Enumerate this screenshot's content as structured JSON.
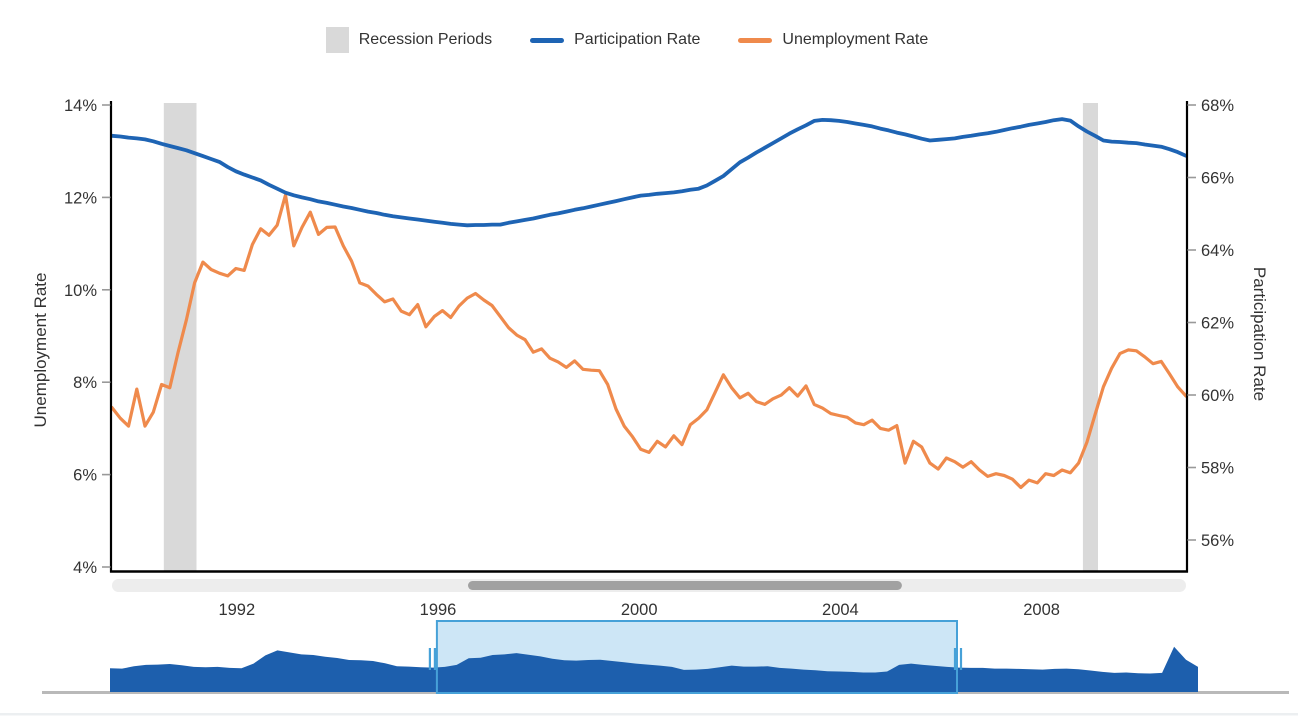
{
  "legend": {
    "items": [
      {
        "label": "Recession Periods",
        "type": "band",
        "color": "#d9d9d9"
      },
      {
        "label": "Participation Rate",
        "type": "line",
        "color": "#1e64b4"
      },
      {
        "label": "Unemployment Rate",
        "type": "line",
        "color": "#ef8a4c"
      }
    ]
  },
  "axes": {
    "left": {
      "title": "Unemployment Rate",
      "ticks": [
        "14%",
        "12%",
        "10%",
        "8%",
        "6%",
        "4%"
      ]
    },
    "right": {
      "title": "Participation Rate",
      "ticks": [
        "68%",
        "66%",
        "64%",
        "62%",
        "60%",
        "58%",
        "56%"
      ]
    },
    "x": {
      "tick_labels": [
        "1992",
        "1996",
        "2000",
        "2004",
        "2008"
      ]
    }
  },
  "chart_data": {
    "type": "line",
    "title": "",
    "x_axis": {
      "min": 1989.52,
      "max": 2010.87,
      "tick_values": [
        1992,
        1996,
        2000,
        2004,
        2008
      ],
      "tick_labels": [
        "1992",
        "1996",
        "2000",
        "2004",
        "2008"
      ]
    },
    "y_left": {
      "label": "Unemployment Rate",
      "min": 3.9,
      "max": 14,
      "tick_values": [
        14,
        12,
        10,
        8,
        6,
        4
      ],
      "tick_labels": [
        "14%",
        "12%",
        "10%",
        "8%",
        "6%",
        "4%"
      ]
    },
    "y_right": {
      "label": "Participation Rate",
      "min": 55.1,
      "max": 68,
      "tick_values": [
        68,
        66,
        64,
        62,
        60,
        58,
        56
      ],
      "tick_labels": [
        "68%",
        "66%",
        "64%",
        "62%",
        "60%",
        "58%",
        "56%"
      ]
    },
    "grid": false,
    "legend_position": "top-center",
    "recession_bands": [
      [
        1990.55,
        1991.2
      ],
      [
        2008.82,
        2009.12
      ]
    ],
    "series": [
      {
        "name": "Unemployment Rate",
        "axis": "left",
        "color": "#ef8a4c",
        "values": [
          7.45,
          7.22,
          7.05,
          7.85,
          7.05,
          7.35,
          7.95,
          7.88,
          8.65,
          9.35,
          10.15,
          10.6,
          10.44,
          10.36,
          10.3,
          10.46,
          10.42,
          10.98,
          11.32,
          11.18,
          11.4,
          12.05,
          10.95,
          11.35,
          11.68,
          11.2,
          11.35,
          11.36,
          10.95,
          10.62,
          10.15,
          10.08,
          9.9,
          9.74,
          9.8,
          9.54,
          9.46,
          9.68,
          9.2,
          9.42,
          9.55,
          9.4,
          9.65,
          9.82,
          9.92,
          9.78,
          9.66,
          9.42,
          9.18,
          9.02,
          8.92,
          8.65,
          8.72,
          8.52,
          8.44,
          8.32,
          8.46,
          8.28,
          8.26,
          8.25,
          7.95,
          7.42,
          7.05,
          6.82,
          6.55,
          6.48,
          6.72,
          6.6,
          6.84,
          6.65,
          7.08,
          7.22,
          7.4,
          7.78,
          8.16,
          7.88,
          7.66,
          7.76,
          7.58,
          7.52,
          7.64,
          7.72,
          7.88,
          7.7,
          7.92,
          7.52,
          7.44,
          7.32,
          7.28,
          7.24,
          7.12,
          7.08,
          7.18,
          7.0,
          6.96,
          7.06,
          6.25,
          6.72,
          6.6,
          6.25,
          6.12,
          6.36,
          6.28,
          6.16,
          6.28,
          6.1,
          5.96,
          6.02,
          5.98,
          5.9,
          5.72,
          5.88,
          5.82,
          6.02,
          5.98,
          6.1,
          6.04,
          6.25,
          6.7,
          7.3,
          7.9,
          8.3,
          8.62,
          8.7,
          8.68,
          8.55,
          8.4,
          8.45,
          8.18,
          7.9,
          7.7
        ]
      },
      {
        "name": "Participation Rate",
        "axis": "right",
        "color": "#1e64b4",
        "values": [
          67.15,
          67.13,
          67.1,
          67.08,
          67.05,
          67.0,
          66.93,
          66.87,
          66.81,
          66.75,
          66.67,
          66.59,
          66.51,
          66.43,
          66.29,
          66.17,
          66.08,
          66.0,
          65.92,
          65.8,
          65.69,
          65.58,
          65.51,
          65.45,
          65.4,
          65.34,
          65.3,
          65.25,
          65.2,
          65.16,
          65.11,
          65.06,
          65.02,
          64.97,
          64.93,
          64.9,
          64.87,
          64.84,
          64.81,
          64.78,
          64.75,
          64.72,
          64.7,
          64.68,
          64.69,
          64.69,
          64.7,
          64.7,
          64.75,
          64.79,
          64.83,
          64.87,
          64.92,
          64.97,
          65.01,
          65.06,
          65.11,
          65.15,
          65.2,
          65.25,
          65.3,
          65.35,
          65.4,
          65.45,
          65.5,
          65.52,
          65.55,
          65.57,
          65.59,
          65.62,
          65.66,
          65.69,
          65.78,
          65.91,
          66.04,
          66.23,
          66.42,
          66.55,
          66.69,
          66.82,
          66.95,
          67.08,
          67.21,
          67.33,
          67.44,
          67.56,
          67.59,
          67.58,
          67.56,
          67.53,
          67.49,
          67.45,
          67.41,
          67.35,
          67.3,
          67.24,
          67.19,
          67.13,
          67.07,
          67.02,
          67.04,
          67.06,
          67.08,
          67.12,
          67.15,
          67.19,
          67.22,
          67.26,
          67.31,
          67.36,
          67.4,
          67.45,
          67.49,
          67.53,
          67.58,
          67.61,
          67.57,
          67.41,
          67.27,
          67.15,
          67.02,
          66.99,
          66.98,
          66.96,
          66.95,
          66.91,
          66.88,
          66.85,
          66.78,
          66.7,
          66.6
        ]
      }
    ],
    "navigator": {
      "x_min": 1976,
      "x_max": 2021.5,
      "step": 0.5,
      "color": "#1d5fad",
      "selection": [
        1989.67,
        2011.42
      ],
      "selection_fill": "#cde6f6",
      "selection_border": "#46a1d8",
      "values": [
        7.2,
        7.1,
        7.8,
        8.2,
        8.3,
        8.5,
        8.1,
        7.6,
        7.5,
        7.6,
        7.3,
        7.2,
        8.6,
        11.1,
        12.6,
        12.0,
        11.4,
        11.2,
        10.7,
        10.3,
        9.7,
        9.6,
        9.4,
        8.7,
        7.8,
        7.7,
        7.5,
        7.4,
        7.6,
        8.2,
        10.2,
        10.4,
        11.2,
        11.4,
        11.8,
        11.3,
        10.8,
        10.1,
        9.6,
        9.5,
        9.7,
        9.8,
        9.4,
        9.0,
        8.6,
        8.3,
        8.0,
        7.6,
        6.7,
        6.8,
        7.0,
        7.5,
        8.0,
        7.7,
        7.7,
        7.8,
        7.3,
        7.1,
        6.8,
        6.6,
        6.3,
        6.2,
        6.1,
        5.9,
        5.9,
        6.2,
        8.2,
        8.6,
        8.2,
        7.9,
        7.6,
        7.4,
        7.3,
        7.3,
        7.1,
        7.1,
        7.0,
        6.9,
        6.8,
        7.0,
        7.1,
        6.9,
        6.5,
        6.1,
        5.8,
        5.9,
        5.7,
        5.6,
        5.8,
        13.7,
        9.8,
        7.6
      ]
    },
    "scrollbar": {
      "thumb_start": 0.3315,
      "thumb_end": 0.7355,
      "track_color": "#ededed",
      "thumb_color": "#a1a1a1"
    }
  }
}
